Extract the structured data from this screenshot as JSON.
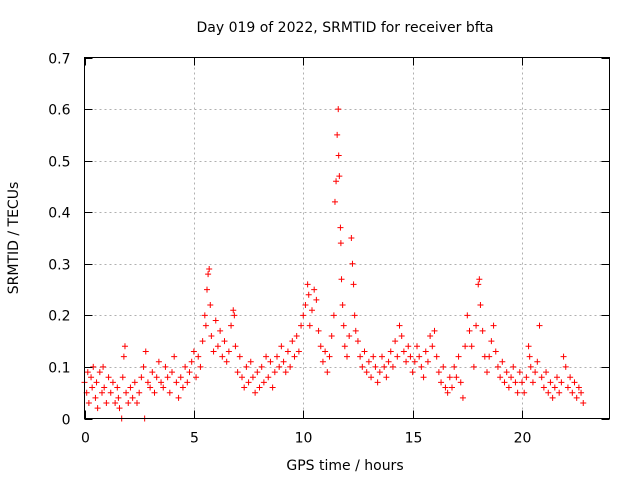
{
  "chart_data": {
    "type": "scatter",
    "title": "Day 019 of 2022, SRMTID for receiver bfta",
    "xlabel": "GPS time / hours",
    "ylabel": "SRMTID / TECUs",
    "xlim": [
      0,
      24
    ],
    "ylim": [
      0,
      0.7
    ],
    "xticks": [
      0,
      5,
      10,
      15,
      20
    ],
    "xtick_labels": [
      "0",
      "5",
      "10",
      "15",
      "20"
    ],
    "yticks": [
      0,
      0.1,
      0.2,
      0.3,
      0.4,
      0.5,
      0.6,
      0.7
    ],
    "ytick_labels": [
      "0",
      "0.1",
      "0.2",
      "0.3",
      "0.4",
      "0.5",
      "0.6",
      "0.7"
    ],
    "grid": true,
    "marker": "plus",
    "series": [
      {
        "name": "SRMTID",
        "color": "#ff0000",
        "points": [
          [
            0.0,
            0.07
          ],
          [
            0.1,
            0.05
          ],
          [
            0.15,
            0.09
          ],
          [
            0.2,
            0.03
          ],
          [
            0.3,
            0.08
          ],
          [
            0.35,
            0.06
          ],
          [
            0.4,
            0.1
          ],
          [
            0.5,
            0.04
          ],
          [
            0.55,
            0.07
          ],
          [
            0.6,
            0.02
          ],
          [
            0.7,
            0.09
          ],
          [
            0.8,
            0.05
          ],
          [
            0.85,
            0.1
          ],
          [
            0.9,
            0.06
          ],
          [
            1.0,
            0.03
          ],
          [
            1.1,
            0.08
          ],
          [
            1.2,
            0.05
          ],
          [
            1.3,
            0.07
          ],
          [
            1.4,
            0.03
          ],
          [
            1.5,
            0.06
          ],
          [
            1.55,
            0.04
          ],
          [
            1.6,
            0.02
          ],
          [
            1.7,
            0.0
          ],
          [
            1.75,
            0.08
          ],
          [
            1.8,
            0.12
          ],
          [
            1.85,
            0.14
          ],
          [
            1.9,
            0.05
          ],
          [
            2.0,
            0.03
          ],
          [
            2.1,
            0.06
          ],
          [
            2.2,
            0.04
          ],
          [
            2.3,
            0.07
          ],
          [
            2.4,
            0.03
          ],
          [
            2.5,
            0.05
          ],
          [
            2.6,
            0.08
          ],
          [
            2.7,
            0.1
          ],
          [
            2.75,
            0.0
          ],
          [
            2.8,
            0.13
          ],
          [
            2.9,
            0.07
          ],
          [
            3.0,
            0.06
          ],
          [
            3.1,
            0.09
          ],
          [
            3.2,
            0.05
          ],
          [
            3.3,
            0.08
          ],
          [
            3.4,
            0.11
          ],
          [
            3.5,
            0.07
          ],
          [
            3.6,
            0.06
          ],
          [
            3.7,
            0.1
          ],
          [
            3.8,
            0.08
          ],
          [
            3.9,
            0.05
          ],
          [
            4.0,
            0.09
          ],
          [
            4.1,
            0.12
          ],
          [
            4.2,
            0.07
          ],
          [
            4.3,
            0.04
          ],
          [
            4.4,
            0.08
          ],
          [
            4.5,
            0.06
          ],
          [
            4.6,
            0.1
          ],
          [
            4.7,
            0.07
          ],
          [
            4.8,
            0.09
          ],
          [
            4.9,
            0.11
          ],
          [
            5.0,
            0.13
          ],
          [
            5.1,
            0.08
          ],
          [
            5.2,
            0.12
          ],
          [
            5.3,
            0.1
          ],
          [
            5.4,
            0.15
          ],
          [
            5.5,
            0.2
          ],
          [
            5.55,
            0.18
          ],
          [
            5.6,
            0.25
          ],
          [
            5.65,
            0.28
          ],
          [
            5.7,
            0.29
          ],
          [
            5.75,
            0.22
          ],
          [
            5.8,
            0.16
          ],
          [
            5.9,
            0.13
          ],
          [
            6.0,
            0.19
          ],
          [
            6.1,
            0.14
          ],
          [
            6.2,
            0.17
          ],
          [
            6.3,
            0.12
          ],
          [
            6.4,
            0.15
          ],
          [
            6.5,
            0.11
          ],
          [
            6.6,
            0.13
          ],
          [
            6.7,
            0.18
          ],
          [
            6.8,
            0.21
          ],
          [
            6.85,
            0.2
          ],
          [
            6.9,
            0.14
          ],
          [
            7.0,
            0.09
          ],
          [
            7.1,
            0.12
          ],
          [
            7.2,
            0.08
          ],
          [
            7.3,
            0.06
          ],
          [
            7.4,
            0.1
          ],
          [
            7.5,
            0.07
          ],
          [
            7.6,
            0.11
          ],
          [
            7.7,
            0.08
          ],
          [
            7.8,
            0.05
          ],
          [
            7.9,
            0.09
          ],
          [
            8.0,
            0.06
          ],
          [
            8.1,
            0.1
          ],
          [
            8.2,
            0.07
          ],
          [
            8.3,
            0.12
          ],
          [
            8.4,
            0.08
          ],
          [
            8.5,
            0.11
          ],
          [
            8.6,
            0.06
          ],
          [
            8.7,
            0.09
          ],
          [
            8.8,
            0.12
          ],
          [
            8.9,
            0.1
          ],
          [
            9.0,
            0.14
          ],
          [
            9.1,
            0.11
          ],
          [
            9.2,
            0.09
          ],
          [
            9.3,
            0.13
          ],
          [
            9.4,
            0.1
          ],
          [
            9.5,
            0.15
          ],
          [
            9.6,
            0.12
          ],
          [
            9.7,
            0.16
          ],
          [
            9.8,
            0.13
          ],
          [
            9.9,
            0.18
          ],
          [
            10.0,
            0.2
          ],
          [
            10.1,
            0.22
          ],
          [
            10.2,
            0.26
          ],
          [
            10.25,
            0.24
          ],
          [
            10.3,
            0.18
          ],
          [
            10.4,
            0.21
          ],
          [
            10.5,
            0.25
          ],
          [
            10.6,
            0.23
          ],
          [
            10.7,
            0.17
          ],
          [
            10.8,
            0.14
          ],
          [
            10.9,
            0.11
          ],
          [
            11.0,
            0.13
          ],
          [
            11.1,
            0.09
          ],
          [
            11.2,
            0.12
          ],
          [
            11.3,
            0.16
          ],
          [
            11.4,
            0.2
          ],
          [
            11.45,
            0.42
          ],
          [
            11.5,
            0.46
          ],
          [
            11.55,
            0.55
          ],
          [
            11.6,
            0.6
          ],
          [
            11.62,
            0.51
          ],
          [
            11.65,
            0.47
          ],
          [
            11.7,
            0.37
          ],
          [
            11.72,
            0.34
          ],
          [
            11.75,
            0.27
          ],
          [
            11.8,
            0.22
          ],
          [
            11.85,
            0.18
          ],
          [
            11.9,
            0.14
          ],
          [
            12.0,
            0.12
          ],
          [
            12.1,
            0.16
          ],
          [
            12.2,
            0.35
          ],
          [
            12.25,
            0.3
          ],
          [
            12.3,
            0.26
          ],
          [
            12.35,
            0.2
          ],
          [
            12.4,
            0.17
          ],
          [
            12.5,
            0.15
          ],
          [
            12.6,
            0.12
          ],
          [
            12.7,
            0.1
          ],
          [
            12.8,
            0.13
          ],
          [
            12.9,
            0.09
          ],
          [
            13.0,
            0.11
          ],
          [
            13.1,
            0.08
          ],
          [
            13.2,
            0.12
          ],
          [
            13.3,
            0.1
          ],
          [
            13.4,
            0.07
          ],
          [
            13.5,
            0.09
          ],
          [
            13.6,
            0.12
          ],
          [
            13.7,
            0.1
          ],
          [
            13.8,
            0.08
          ],
          [
            13.9,
            0.11
          ],
          [
            14.0,
            0.13
          ],
          [
            14.1,
            0.1
          ],
          [
            14.2,
            0.15
          ],
          [
            14.3,
            0.12
          ],
          [
            14.4,
            0.18
          ],
          [
            14.5,
            0.16
          ],
          [
            14.6,
            0.13
          ],
          [
            14.7,
            0.11
          ],
          [
            14.8,
            0.14
          ],
          [
            14.9,
            0.12
          ],
          [
            15.0,
            0.09
          ],
          [
            15.1,
            0.11
          ],
          [
            15.2,
            0.14
          ],
          [
            15.3,
            0.12
          ],
          [
            15.4,
            0.1
          ],
          [
            15.5,
            0.08
          ],
          [
            15.6,
            0.13
          ],
          [
            15.7,
            0.11
          ],
          [
            15.8,
            0.16
          ],
          [
            15.9,
            0.14
          ],
          [
            16.0,
            0.17
          ],
          [
            16.1,
            0.12
          ],
          [
            16.2,
            0.09
          ],
          [
            16.3,
            0.07
          ],
          [
            16.4,
            0.1
          ],
          [
            16.5,
            0.06
          ],
          [
            16.6,
            0.05
          ],
          [
            16.7,
            0.08
          ],
          [
            16.8,
            0.06
          ],
          [
            16.9,
            0.1
          ],
          [
            17.0,
            0.08
          ],
          [
            17.1,
            0.12
          ],
          [
            17.2,
            0.07
          ],
          [
            17.3,
            0.04
          ],
          [
            17.4,
            0.14
          ],
          [
            17.5,
            0.2
          ],
          [
            17.6,
            0.17
          ],
          [
            17.7,
            0.14
          ],
          [
            17.8,
            0.1
          ],
          [
            17.9,
            0.18
          ],
          [
            18.0,
            0.26
          ],
          [
            18.05,
            0.27
          ],
          [
            18.1,
            0.22
          ],
          [
            18.2,
            0.17
          ],
          [
            18.3,
            0.12
          ],
          [
            18.4,
            0.09
          ],
          [
            18.5,
            0.12
          ],
          [
            18.6,
            0.15
          ],
          [
            18.7,
            0.18
          ],
          [
            18.8,
            0.13
          ],
          [
            18.9,
            0.1
          ],
          [
            19.0,
            0.08
          ],
          [
            19.1,
            0.11
          ],
          [
            19.2,
            0.07
          ],
          [
            19.3,
            0.09
          ],
          [
            19.4,
            0.06
          ],
          [
            19.5,
            0.08
          ],
          [
            19.6,
            0.1
          ],
          [
            19.7,
            0.07
          ],
          [
            19.8,
            0.05
          ],
          [
            19.9,
            0.09
          ],
          [
            20.0,
            0.07
          ],
          [
            20.1,
            0.05
          ],
          [
            20.2,
            0.08
          ],
          [
            20.3,
            0.14
          ],
          [
            20.35,
            0.12
          ],
          [
            20.4,
            0.1
          ],
          [
            20.5,
            0.07
          ],
          [
            20.6,
            0.09
          ],
          [
            20.7,
            0.11
          ],
          [
            20.8,
            0.18
          ],
          [
            20.9,
            0.08
          ],
          [
            21.0,
            0.06
          ],
          [
            21.1,
            0.09
          ],
          [
            21.2,
            0.05
          ],
          [
            21.3,
            0.07
          ],
          [
            21.4,
            0.04
          ],
          [
            21.5,
            0.06
          ],
          [
            21.6,
            0.08
          ],
          [
            21.7,
            0.05
          ],
          [
            21.8,
            0.07
          ],
          [
            21.9,
            0.12
          ],
          [
            22.0,
            0.1
          ],
          [
            22.1,
            0.06
          ],
          [
            22.2,
            0.08
          ],
          [
            22.3,
            0.05
          ],
          [
            22.4,
            0.07
          ],
          [
            22.5,
            0.04
          ],
          [
            22.6,
            0.06
          ],
          [
            22.7,
            0.05
          ],
          [
            22.8,
            0.03
          ]
        ]
      }
    ]
  }
}
